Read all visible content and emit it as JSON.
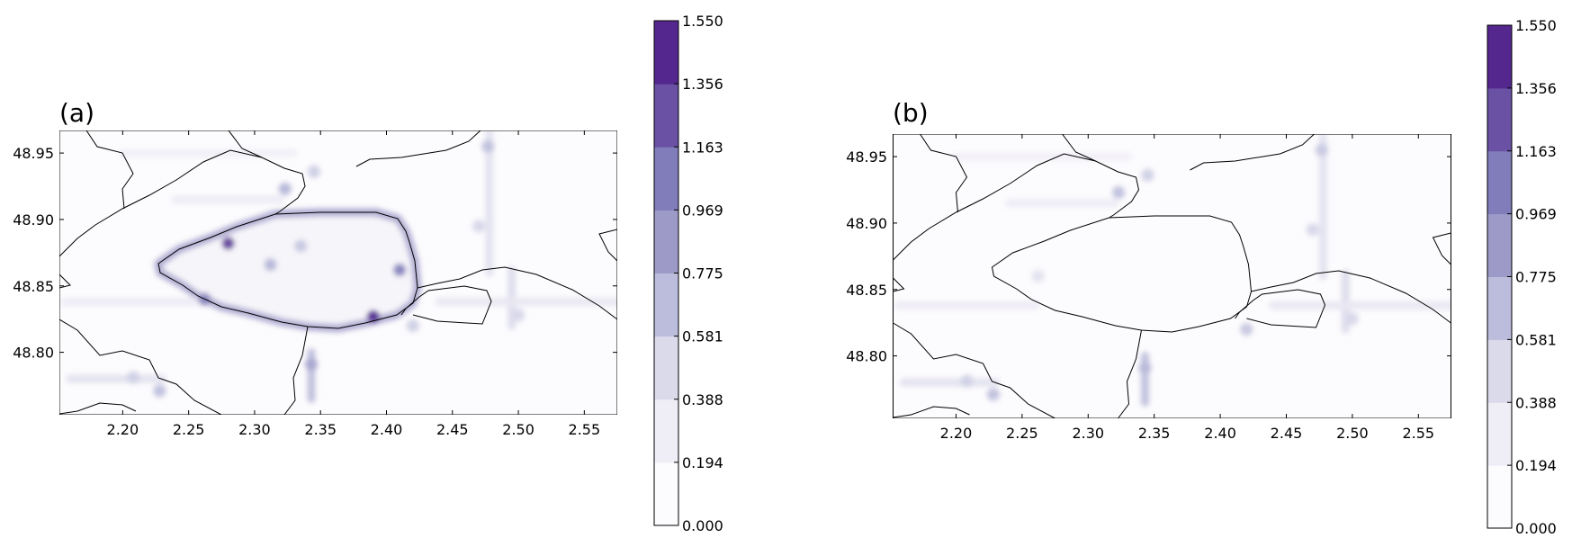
{
  "chart_data": [
    {
      "type": "heatmap",
      "panel_label": "(a)",
      "xticks": [
        "2.20",
        "2.25",
        "2.30",
        "2.35",
        "2.40",
        "2.45",
        "2.50",
        "2.55"
      ],
      "yticks": [
        "48.95",
        "48.90",
        "48.85",
        "48.80"
      ],
      "xlim": [
        2.152,
        2.575
      ],
      "ylim": [
        48.753,
        48.967
      ],
      "colorbar": {
        "colormap": "Purples",
        "range": [
          0.0,
          1.55
        ],
        "ticks": [
          "1.550",
          "1.356",
          "1.163",
          "0.969",
          "0.775",
          "0.581",
          "0.388",
          "0.194",
          "0.000"
        ],
        "level_colors": [
          "#fcfbfd",
          "#efedf5",
          "#dadaeb",
          "#bcbddc",
          "#9e9ac8",
          "#807dba",
          "#6a51a3",
          "#54278f",
          "#3f007d"
        ]
      },
      "boundary_ring_intensity": 1.0,
      "hotspots": [
        {
          "x": 2.28,
          "y": 48.882,
          "value": 1.2
        },
        {
          "x": 2.39,
          "y": 48.827,
          "value": 1.3
        },
        {
          "x": 2.262,
          "y": 48.84,
          "value": 0.9
        },
        {
          "x": 2.41,
          "y": 48.862,
          "value": 0.9
        },
        {
          "x": 2.343,
          "y": 48.791,
          "value": 0.7
        },
        {
          "x": 2.323,
          "y": 48.923,
          "value": 0.6
        },
        {
          "x": 2.335,
          "y": 48.88,
          "value": 0.5
        },
        {
          "x": 2.312,
          "y": 48.866,
          "value": 0.6
        },
        {
          "x": 2.228,
          "y": 48.771,
          "value": 0.55
        },
        {
          "x": 2.208,
          "y": 48.781,
          "value": 0.45
        },
        {
          "x": 2.345,
          "y": 48.936,
          "value": 0.45
        },
        {
          "x": 2.477,
          "y": 48.955,
          "value": 0.55
        },
        {
          "x": 2.47,
          "y": 48.895,
          "value": 0.4
        },
        {
          "x": 2.5,
          "y": 48.828,
          "value": 0.4
        },
        {
          "x": 2.42,
          "y": 48.82,
          "value": 0.45
        }
      ],
      "corridors": [
        {
          "from": [
            2.343,
            48.8
          ],
          "to": [
            2.343,
            48.765
          ],
          "value": 0.55
        },
        {
          "from": [
            2.478,
            48.965
          ],
          "to": [
            2.478,
            48.86
          ],
          "value": 0.3
        },
        {
          "from": [
            2.495,
            48.862
          ],
          "to": [
            2.495,
            48.82
          ],
          "value": 0.35
        },
        {
          "from": [
            2.156,
            48.838
          ],
          "to": [
            2.26,
            48.838
          ],
          "value": 0.2
        },
        {
          "from": [
            2.44,
            48.838
          ],
          "to": [
            2.575,
            48.838
          ],
          "value": 0.25
        },
        {
          "from": [
            2.16,
            48.78
          ],
          "to": [
            2.23,
            48.78
          ],
          "value": 0.3
        },
        {
          "from": [
            2.2,
            48.95
          ],
          "to": [
            2.33,
            48.95
          ],
          "value": 0.15
        },
        {
          "from": [
            2.24,
            48.915
          ],
          "to": [
            2.32,
            48.915
          ],
          "value": 0.2
        }
      ]
    },
    {
      "type": "heatmap",
      "panel_label": "(b)",
      "xticks": [
        "2.20",
        "2.25",
        "2.30",
        "2.35",
        "2.40",
        "2.45",
        "2.50",
        "2.55"
      ],
      "yticks": [
        "48.95",
        "48.90",
        "48.85",
        "48.80"
      ],
      "xlim": [
        2.152,
        2.575
      ],
      "ylim": [
        48.753,
        48.967
      ],
      "colorbar": {
        "colormap": "Purples",
        "range": [
          0.0,
          1.55
        ],
        "ticks": [
          "1.550",
          "1.356",
          "1.163",
          "0.969",
          "0.775",
          "0.581",
          "0.388",
          "0.194",
          "0.000"
        ],
        "level_colors": [
          "#fcfbfd",
          "#efedf5",
          "#dadaeb",
          "#bcbddc",
          "#9e9ac8",
          "#807dba",
          "#6a51a3",
          "#54278f",
          "#3f007d"
        ]
      },
      "boundary_ring_intensity": 0.0,
      "hotspots": [
        {
          "x": 2.343,
          "y": 48.791,
          "value": 0.6
        },
        {
          "x": 2.228,
          "y": 48.771,
          "value": 0.55
        },
        {
          "x": 2.208,
          "y": 48.781,
          "value": 0.45
        },
        {
          "x": 2.323,
          "y": 48.923,
          "value": 0.55
        },
        {
          "x": 2.345,
          "y": 48.936,
          "value": 0.45
        },
        {
          "x": 2.477,
          "y": 48.955,
          "value": 0.5
        },
        {
          "x": 2.47,
          "y": 48.895,
          "value": 0.4
        },
        {
          "x": 2.5,
          "y": 48.828,
          "value": 0.4
        },
        {
          "x": 2.42,
          "y": 48.82,
          "value": 0.5
        },
        {
          "x": 2.262,
          "y": 48.86,
          "value": 0.3
        }
      ],
      "corridors": [
        {
          "from": [
            2.343,
            48.8
          ],
          "to": [
            2.343,
            48.765
          ],
          "value": 0.55
        },
        {
          "from": [
            2.478,
            48.965
          ],
          "to": [
            2.478,
            48.86
          ],
          "value": 0.3
        },
        {
          "from": [
            2.495,
            48.862
          ],
          "to": [
            2.495,
            48.82
          ],
          "value": 0.35
        },
        {
          "from": [
            2.156,
            48.838
          ],
          "to": [
            2.26,
            48.838
          ],
          "value": 0.2
        },
        {
          "from": [
            2.44,
            48.838
          ],
          "to": [
            2.575,
            48.838
          ],
          "value": 0.25
        },
        {
          "from": [
            2.16,
            48.78
          ],
          "to": [
            2.23,
            48.78
          ],
          "value": 0.3
        },
        {
          "from": [
            2.2,
            48.95
          ],
          "to": [
            2.33,
            48.95
          ],
          "value": 0.15
        },
        {
          "from": [
            2.24,
            48.915
          ],
          "to": [
            2.32,
            48.915
          ],
          "value": 0.2
        }
      ]
    }
  ]
}
